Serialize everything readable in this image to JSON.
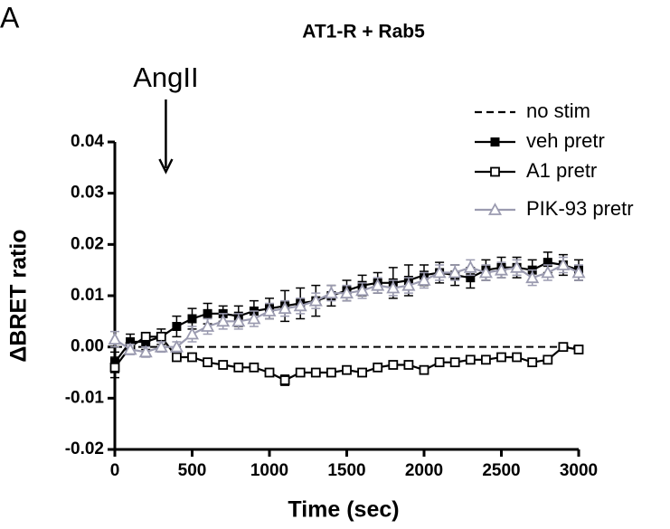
{
  "panel_label": "A",
  "chart_data": {
    "type": "line",
    "title": "AT1-R + Rab5",
    "annotation": {
      "text": "AngII",
      "x": 330
    },
    "xlabel": "Time (sec)",
    "ylabel": "ΔBRET ratio",
    "xlim": [
      0,
      3000
    ],
    "xticks": [
      0,
      500,
      1000,
      1500,
      2000,
      2500,
      3000
    ],
    "ylim": [
      -0.02,
      0.04
    ],
    "yticks": [
      -0.02,
      -0.01,
      {
        "value": 0,
        "label": "0.00"
      },
      0.01,
      0.02,
      0.03,
      0.04
    ],
    "legend": "upper right",
    "x": [
      0,
      100,
      200,
      300,
      400,
      500,
      600,
      700,
      800,
      900,
      1000,
      1100,
      1200,
      1300,
      1400,
      1500,
      1600,
      1700,
      1800,
      1900,
      2000,
      2100,
      2200,
      2300,
      2400,
      2500,
      2600,
      2700,
      2800,
      2900,
      3000
    ],
    "series": [
      {
        "name": "no stim",
        "color": "#000000",
        "marker": "none",
        "dash": true,
        "values": [
          0,
          0,
          0,
          0,
          0,
          0,
          0,
          0,
          0,
          0,
          0,
          0,
          0,
          0,
          0,
          0,
          0,
          0,
          0,
          0,
          0,
          0,
          0,
          0,
          0,
          0,
          0,
          0,
          0,
          0,
          0
        ]
      },
      {
        "name": "veh pretr",
        "color": "#000000",
        "marker": "filled-square",
        "dash": false,
        "values": [
          -0.003,
          0.001,
          0.001,
          0.002,
          0.004,
          0.0055,
          0.0065,
          0.0065,
          0.006,
          0.007,
          0.0075,
          0.008,
          0.0085,
          0.009,
          0.01,
          0.011,
          0.012,
          0.0125,
          0.0125,
          0.013,
          0.014,
          0.0145,
          0.014,
          0.0135,
          0.015,
          0.0155,
          0.0155,
          0.015,
          0.0165,
          0.016,
          0.015
        ],
        "errors": [
          0.002,
          0.0015,
          0.0015,
          0.0015,
          0.002,
          0.002,
          0.002,
          0.0015,
          0.002,
          0.002,
          0.002,
          0.003,
          0.003,
          0.003,
          0.002,
          0.002,
          0.002,
          0.002,
          0.003,
          0.003,
          0.002,
          0.002,
          0.002,
          0.002,
          0.002,
          0.002,
          0.002,
          0.002,
          0.002,
          0.002,
          0.002
        ]
      },
      {
        "name": "A1 pretr",
        "color": "#000000",
        "marker": "open-square",
        "dash": false,
        "values": [
          -0.004,
          0,
          0.002,
          0.002,
          -0.002,
          -0.002,
          -0.003,
          -0.0035,
          -0.004,
          -0.004,
          -0.005,
          -0.0065,
          -0.005,
          -0.005,
          -0.005,
          -0.0045,
          -0.005,
          -0.004,
          -0.0035,
          -0.0035,
          -0.0045,
          -0.003,
          -0.003,
          -0.0025,
          -0.0025,
          -0.002,
          -0.002,
          -0.003,
          -0.0025,
          0,
          -0.0005
        ],
        "errors": [
          0.002,
          0.0005,
          0.0005,
          0.0005,
          0.0005,
          0.0005,
          0.0005,
          0.0005,
          0.0005,
          0.0005,
          0.0005,
          0.001,
          0.0005,
          0.0005,
          0.0005,
          0.0005,
          0.0005,
          0.0005,
          0.0005,
          0.0005,
          0.0005,
          0.0005,
          0.0005,
          0.0005,
          0.0005,
          0.0005,
          0.0005,
          0.0005,
          0.0005,
          0.0005,
          0.0005
        ]
      },
      {
        "name": "PIK-93 pretr",
        "color": "#9b9bb0",
        "marker": "open-triangle",
        "dash": false,
        "values": [
          0.0015,
          -0.0005,
          -0.001,
          0,
          0,
          0.0025,
          0.004,
          0.005,
          0.005,
          0.0055,
          0.007,
          0.0075,
          0.008,
          0.009,
          0.0105,
          0.0105,
          0.011,
          0.012,
          0.0115,
          0.012,
          0.013,
          0.0145,
          0.0145,
          0.0155,
          0.0145,
          0.015,
          0.0155,
          0.0135,
          0.0145,
          0.016,
          0.0145
        ],
        "errors": [
          0.0015,
          0.001,
          0.001,
          0.001,
          0.001,
          0.0015,
          0.0015,
          0.0015,
          0.0015,
          0.0015,
          0.0015,
          0.0015,
          0.0015,
          0.0015,
          0.0015,
          0.0015,
          0.0015,
          0.0015,
          0.0015,
          0.0015,
          0.0015,
          0.0015,
          0.0015,
          0.0015,
          0.0015,
          0.0015,
          0.0015,
          0.0015,
          0.0015,
          0.0015,
          0.0015
        ]
      }
    ]
  }
}
